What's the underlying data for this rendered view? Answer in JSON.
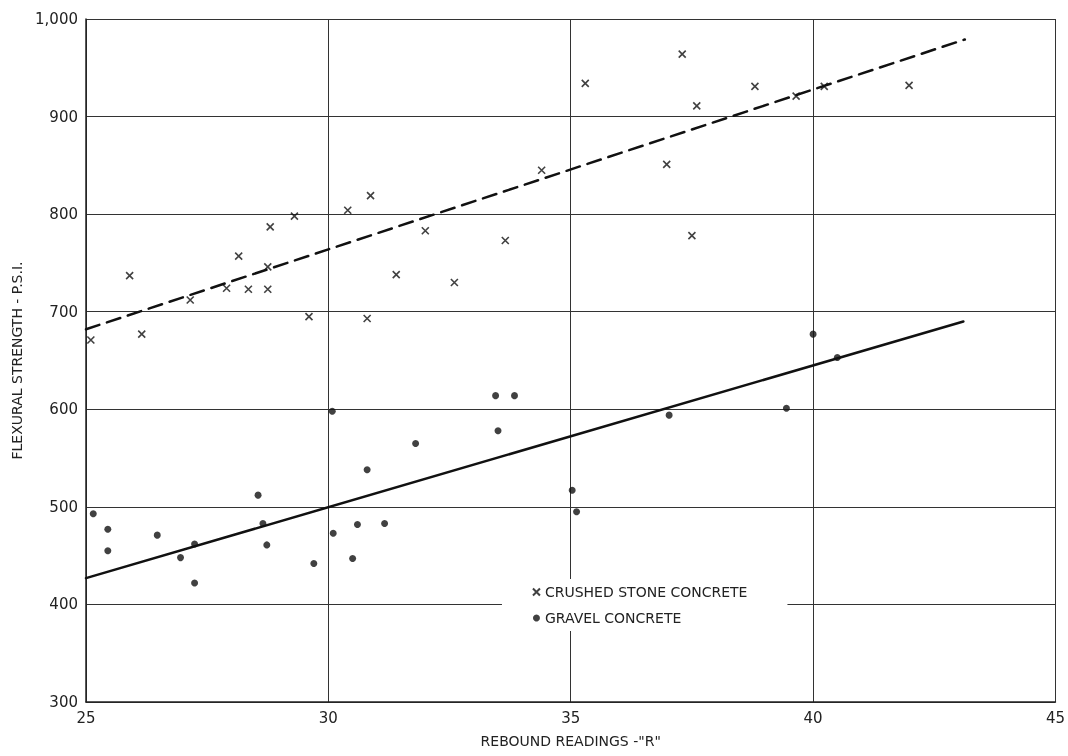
{
  "chart_data": {
    "type": "scatter",
    "xlabel": "REBOUND READINGS -\"R\"",
    "ylabel": "FLEXURAL STRENGTH - P.S.I.",
    "xlim": [
      25,
      45
    ],
    "xticks": [
      25,
      30,
      35,
      40,
      45
    ],
    "ylim": [
      300,
      1000
    ],
    "yticks": [
      300,
      400,
      500,
      600,
      700,
      800,
      900,
      {
        "value": 1000,
        "label": "1,000"
      }
    ],
    "grid": true,
    "legend": "bottom",
    "series": [
      {
        "name": "CRUSHED STONE CONCRETE",
        "marker": "cross",
        "color": "#111111",
        "x": [
          25.1,
          25.9,
          26.15,
          27.15,
          27.9,
          28.15,
          28.35,
          28.75,
          28.75,
          28.8,
          29.3,
          29.6,
          30.4,
          30.8,
          30.87,
          31.4,
          32.0,
          32.6,
          33.65,
          34.4,
          35.3,
          36.98,
          37.3,
          37.5,
          37.6,
          38.8,
          39.65,
          40.23,
          41.98
        ],
        "values": [
          671,
          737,
          677,
          712,
          724,
          757,
          723,
          746,
          723,
          787,
          798,
          695,
          804,
          693,
          819,
          738,
          783,
          730,
          773,
          845,
          934,
          851,
          964,
          778,
          911,
          931,
          921,
          931,
          932
        ]
      },
      {
        "name": "GRAVEL CONCRETE",
        "marker": "circle",
        "color": "#111111",
        "x": [
          25.15,
          25.45,
          25.45,
          26.47,
          26.95,
          27.24,
          27.24,
          28.55,
          28.65,
          28.73,
          29.7,
          30.08,
          30.1,
          30.5,
          30.6,
          30.8,
          31.16,
          31.8,
          33.45,
          33.5,
          33.84,
          35.03,
          35.12,
          37.03,
          39.45,
          40.0,
          40.5
        ],
        "values": [
          493,
          477,
          455,
          471,
          448,
          462,
          422,
          512,
          483,
          461,
          442,
          598,
          473,
          447,
          482,
          538,
          483,
          565,
          614,
          578,
          614,
          517,
          495,
          594,
          601,
          677,
          653
        ]
      },
      {
        "type": "line",
        "marker": "none",
        "line_style": "dashed",
        "color": "#111111",
        "x": [
          25,
          43.13
        ],
        "values": [
          682,
          979
        ]
      },
      {
        "type": "line",
        "marker": "none",
        "line_style": "solid",
        "color": "#111111",
        "x": [
          25,
          43.1
        ],
        "values": [
          427,
          690
        ]
      }
    ]
  }
}
